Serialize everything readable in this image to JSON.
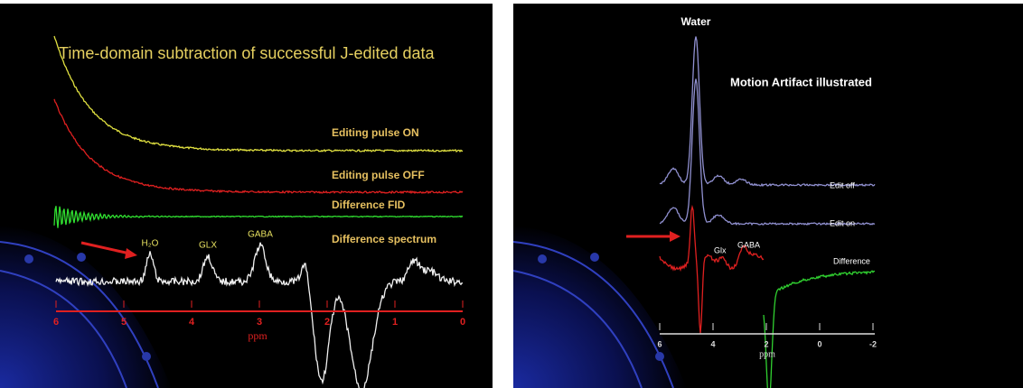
{
  "left": {
    "title": "Time-domain subtraction of successful J-edited data",
    "traces": [
      "Editing pulse ON",
      "Editing pulse OFF",
      "Difference FID",
      "Difference spectrum"
    ],
    "peaks": [
      "H₂O",
      "GLX",
      "GABA"
    ],
    "axis": {
      "ticks": [
        "6",
        "5",
        "4",
        "3",
        "2",
        "1",
        "0"
      ],
      "label": "ppm"
    }
  },
  "right": {
    "title": "Motion Artifact illustrated",
    "water": "Water",
    "traces": [
      "Edit off",
      "Edit on",
      "Difference"
    ],
    "peaks": [
      "Glx",
      "GABA"
    ],
    "axis": {
      "ticks": [
        "6",
        "4",
        "2",
        "0",
        "-2"
      ],
      "label": "ppm"
    }
  }
}
